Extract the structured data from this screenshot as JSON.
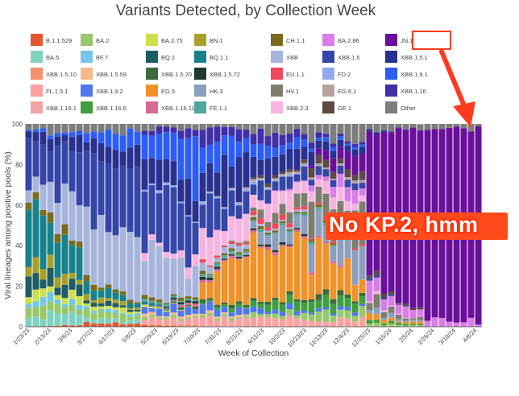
{
  "chart_data": {
    "type": "bar",
    "stacked": true,
    "title": "Variants Detected, by Collection Week",
    "xlabel": "Week of Collection",
    "ylabel": "Viral lineages among positive pools (%)",
    "ylim": [
      0,
      100
    ],
    "yticks": [
      0,
      20,
      40,
      60,
      80,
      100
    ],
    "xtick_labels": [
      "1/23/23",
      "2/13/23",
      "3/6/23",
      "3/27/23",
      "4/17/23",
      "5/8/23",
      "5/29/23",
      "6/19/23",
      "7/10/23",
      "7/31/23",
      "8/21/23",
      "9/11/23",
      "10/2/23",
      "10/23/23",
      "11/13/23",
      "12/4/23",
      "12/25/23",
      "1/15/24",
      "2/5/24",
      "2/26/24",
      "3/18/24",
      "4/8/24"
    ],
    "legend_placement": "top",
    "week_count": 63,
    "series": [
      {
        "name": "B.1.1.529",
        "color": "#e4572e",
        "phases": [
          [
            0,
            1
          ],
          [
            2,
            1
          ],
          [
            1,
            0
          ],
          [
            0,
            0
          ],
          [
            0,
            0
          ],
          [
            0,
            0
          ],
          [
            0,
            0
          ],
          [
            0,
            0
          ]
        ]
      },
      {
        "name": "BA.5",
        "color": "#7fd1c1",
        "phases": [
          [
            4,
            6
          ],
          [
            2,
            1
          ],
          [
            0,
            0
          ],
          [
            0,
            0
          ],
          [
            0,
            0
          ],
          [
            0,
            0
          ],
          [
            0,
            0
          ],
          [
            0,
            0
          ]
        ]
      },
      {
        "name": "XBB.1.5.10",
        "color": "#f58f6c",
        "phases": [
          [
            0,
            0
          ],
          [
            0,
            0
          ],
          [
            0,
            1
          ],
          [
            0,
            0
          ],
          [
            0,
            0
          ],
          [
            0,
            0
          ],
          [
            0,
            0
          ],
          [
            0,
            0
          ]
        ]
      },
      {
        "name": "FL.1.5.1",
        "color": "#ff9f9f",
        "phases": [
          [
            0,
            0
          ],
          [
            0,
            0
          ],
          [
            1,
            2
          ],
          [
            3,
            3
          ],
          [
            3,
            3
          ],
          [
            2,
            2
          ],
          [
            0,
            0
          ],
          [
            0,
            0
          ]
        ]
      },
      {
        "name": "XBB.1.16.1",
        "color": "#f4a3a3",
        "phases": [
          [
            0,
            0
          ],
          [
            0,
            0
          ],
          [
            1,
            1
          ],
          [
            2,
            2
          ],
          [
            2,
            2
          ],
          [
            1,
            1
          ],
          [
            0,
            0
          ],
          [
            0,
            0
          ]
        ]
      },
      {
        "name": "BA.2",
        "color": "#98c86b",
        "phases": [
          [
            5,
            3
          ],
          [
            3,
            2
          ],
          [
            1,
            1
          ],
          [
            1,
            1
          ],
          [
            2,
            3
          ],
          [
            4,
            3
          ],
          [
            1,
            1
          ],
          [
            0,
            0
          ]
        ]
      },
      {
        "name": "BF.7",
        "color": "#74c7e8",
        "phases": [
          [
            3,
            2
          ],
          [
            1,
            1
          ],
          [
            0,
            0
          ],
          [
            0,
            0
          ],
          [
            0,
            0
          ],
          [
            0,
            0
          ],
          [
            0,
            0
          ],
          [
            0,
            0
          ]
        ]
      },
      {
        "name": "XBB.1.5.59",
        "color": "#f7b98b",
        "phases": [
          [
            0,
            0
          ],
          [
            0,
            0
          ],
          [
            1,
            1
          ],
          [
            1,
            1
          ],
          [
            0,
            0
          ],
          [
            0,
            0
          ],
          [
            0,
            0
          ],
          [
            0,
            0
          ]
        ]
      },
      {
        "name": "XBB.1.9.2",
        "color": "#5077ee",
        "phases": [
          [
            0,
            0
          ],
          [
            0,
            0
          ],
          [
            2,
            4
          ],
          [
            3,
            3
          ],
          [
            2,
            2
          ],
          [
            1,
            1
          ],
          [
            0,
            0
          ],
          [
            0,
            0
          ]
        ]
      },
      {
        "name": "XBB.1.16.6",
        "color": "#3f9e3f",
        "phases": [
          [
            0,
            0
          ],
          [
            0,
            0
          ],
          [
            0,
            0
          ],
          [
            1,
            2
          ],
          [
            3,
            4
          ],
          [
            4,
            3
          ],
          [
            1,
            1
          ],
          [
            0,
            0
          ]
        ]
      },
      {
        "name": "BA.2.75",
        "color": "#cde04a",
        "phases": [
          [
            4,
            3
          ],
          [
            2,
            1
          ],
          [
            1,
            0
          ],
          [
            0,
            0
          ],
          [
            0,
            0
          ],
          [
            0,
            0
          ],
          [
            0,
            0
          ],
          [
            0,
            0
          ]
        ]
      },
      {
        "name": "BQ.1",
        "color": "#1f5c63",
        "phases": [
          [
            8,
            4
          ],
          [
            2,
            1
          ],
          [
            0,
            0
          ],
          [
            0,
            0
          ],
          [
            0,
            0
          ],
          [
            0,
            0
          ],
          [
            0,
            0
          ],
          [
            0,
            0
          ]
        ]
      },
      {
        "name": "XBB.1.5.70",
        "color": "#3d6b3d",
        "phases": [
          [
            0,
            0
          ],
          [
            0,
            0
          ],
          [
            0,
            1
          ],
          [
            1,
            2
          ],
          [
            2,
            2
          ],
          [
            2,
            1
          ],
          [
            0,
            0
          ],
          [
            0,
            0
          ]
        ]
      },
      {
        "name": "EG.5",
        "color": "#f0922a",
        "phases": [
          [
            0,
            0
          ],
          [
            0,
            0
          ],
          [
            0,
            0
          ],
          [
            6,
            28
          ],
          [
            38,
            30
          ],
          [
            20,
            8
          ],
          [
            2,
            1
          ],
          [
            0,
            0
          ]
        ]
      },
      {
        "name": "XBB.1.16.11",
        "color": "#d86a95",
        "phases": [
          [
            0,
            0
          ],
          [
            0,
            0
          ],
          [
            0,
            1
          ],
          [
            1,
            1
          ],
          [
            1,
            1
          ],
          [
            1,
            0
          ],
          [
            0,
            0
          ],
          [
            0,
            0
          ]
        ]
      },
      {
        "name": "BN.1",
        "color": "#a8a029",
        "phases": [
          [
            6,
            3
          ],
          [
            2,
            1
          ],
          [
            0,
            0
          ],
          [
            0,
            0
          ],
          [
            0,
            0
          ],
          [
            0,
            0
          ],
          [
            0,
            0
          ],
          [
            0,
            0
          ]
        ]
      },
      {
        "name": "BQ.1.1",
        "color": "#17828c",
        "phases": [
          [
            24,
            12
          ],
          [
            6,
            2
          ],
          [
            1,
            0
          ],
          [
            0,
            0
          ],
          [
            0,
            0
          ],
          [
            0,
            0
          ],
          [
            0,
            0
          ],
          [
            0,
            0
          ]
        ]
      },
      {
        "name": "XBB.1.5.72",
        "color": "#1f3b2f",
        "phases": [
          [
            0,
            0
          ],
          [
            0,
            0
          ],
          [
            0,
            1
          ],
          [
            1,
            1
          ],
          [
            1,
            1
          ],
          [
            0,
            0
          ],
          [
            0,
            0
          ],
          [
            0,
            0
          ]
        ]
      },
      {
        "name": "HK.3",
        "color": "#8aa0be",
        "phases": [
          [
            0,
            0
          ],
          [
            0,
            0
          ],
          [
            0,
            0
          ],
          [
            0,
            1
          ],
          [
            4,
            8
          ],
          [
            10,
            10
          ],
          [
            2,
            1
          ],
          [
            0,
            0
          ]
        ]
      },
      {
        "name": "FE.1.1",
        "color": "#4ea89b",
        "phases": [
          [
            0,
            0
          ],
          [
            0,
            0
          ],
          [
            1,
            1
          ],
          [
            1,
            1
          ],
          [
            1,
            1
          ],
          [
            1,
            0
          ],
          [
            0,
            0
          ],
          [
            0,
            0
          ]
        ]
      },
      {
        "name": "CH.1.1",
        "color": "#7a6b1d",
        "phases": [
          [
            5,
            3
          ],
          [
            2,
            1
          ],
          [
            1,
            1
          ],
          [
            1,
            1
          ],
          [
            1,
            1
          ],
          [
            1,
            0
          ],
          [
            0,
            0
          ],
          [
            0,
            0
          ]
        ]
      },
      {
        "name": "XBB",
        "color": "#a7b5dd",
        "phases": [
          [
            10,
            22
          ],
          [
            34,
            42
          ],
          [
            24,
            10
          ],
          [
            4,
            2
          ],
          [
            1,
            1
          ],
          [
            0,
            0
          ],
          [
            0,
            0
          ],
          [
            0,
            0
          ]
        ]
      },
      {
        "name": "EU.1.1",
        "color": "#f0475a",
        "phases": [
          [
            0,
            0
          ],
          [
            0,
            0
          ],
          [
            0,
            0
          ],
          [
            1,
            1
          ],
          [
            2,
            2
          ],
          [
            1,
            1
          ],
          [
            0,
            0
          ],
          [
            0,
            0
          ]
        ]
      },
      {
        "name": "HV.1",
        "color": "#7e7e6e",
        "phases": [
          [
            0,
            0
          ],
          [
            0,
            0
          ],
          [
            0,
            0
          ],
          [
            0,
            1
          ],
          [
            3,
            8
          ],
          [
            12,
            14
          ],
          [
            4,
            1
          ],
          [
            0,
            0
          ]
        ]
      },
      {
        "name": "XBB.2.3",
        "color": "#f7b4e0",
        "phases": [
          [
            0,
            0
          ],
          [
            0,
            0
          ],
          [
            2,
            4
          ],
          [
            10,
            12
          ],
          [
            8,
            7
          ],
          [
            5,
            3
          ],
          [
            1,
            0
          ],
          [
            0,
            0
          ]
        ]
      },
      {
        "name": "BA.2.86",
        "color": "#d87ee8",
        "phases": [
          [
            0,
            0
          ],
          [
            0,
            0
          ],
          [
            0,
            0
          ],
          [
            0,
            0
          ],
          [
            0,
            1
          ],
          [
            2,
            5
          ],
          [
            8,
            6
          ],
          [
            4,
            2
          ]
        ]
      },
      {
        "name": "XBB.1.5",
        "color": "#3545a8",
        "phases": [
          [
            18,
            22
          ],
          [
            28,
            26
          ],
          [
            30,
            24
          ],
          [
            18,
            12
          ],
          [
            8,
            5
          ],
          [
            3,
            2
          ],
          [
            1,
            0
          ],
          [
            0,
            0
          ]
        ]
      },
      {
        "name": "FD.2",
        "color": "#93a9ee",
        "phases": [
          [
            0,
            0
          ],
          [
            0,
            0
          ],
          [
            1,
            1
          ],
          [
            1,
            1
          ],
          [
            1,
            1
          ],
          [
            0,
            0
          ],
          [
            0,
            0
          ],
          [
            0,
            0
          ]
        ]
      },
      {
        "name": "EG.6.1",
        "color": "#b7a2a2",
        "phases": [
          [
            0,
            0
          ],
          [
            0,
            0
          ],
          [
            0,
            0
          ],
          [
            0,
            1
          ],
          [
            1,
            1
          ],
          [
            1,
            1
          ],
          [
            0,
            0
          ],
          [
            0,
            0
          ]
        ]
      },
      {
        "name": "GE.1",
        "color": "#5b4a45",
        "phases": [
          [
            0,
            0
          ],
          [
            0,
            0
          ],
          [
            0,
            0
          ],
          [
            0,
            0
          ],
          [
            1,
            2
          ],
          [
            3,
            3
          ],
          [
            1,
            1
          ],
          [
            0,
            0
          ]
        ]
      },
      {
        "name": "JN.1",
        "color": "#6a0f9b",
        "phases": [
          [
            0,
            0
          ],
          [
            0,
            0
          ],
          [
            0,
            0
          ],
          [
            0,
            0
          ],
          [
            0,
            0
          ],
          [
            1,
            8
          ],
          [
            70,
            90
          ],
          [
            94,
            96
          ]
        ]
      },
      {
        "name": "XBB.1.5.1",
        "color": "#29318f",
        "phases": [
          [
            4,
            6
          ],
          [
            6,
            8
          ],
          [
            8,
            14
          ],
          [
            22,
            18
          ],
          [
            12,
            9
          ],
          [
            5,
            3
          ],
          [
            1,
            0
          ],
          [
            0,
            0
          ]
        ]
      },
      {
        "name": "XBB.1.9.1",
        "color": "#2c5ef5",
        "phases": [
          [
            1,
            2
          ],
          [
            4,
            8
          ],
          [
            14,
            22
          ],
          [
            16,
            10
          ],
          [
            6,
            4
          ],
          [
            2,
            1
          ],
          [
            0,
            0
          ],
          [
            0,
            0
          ]
        ]
      },
      {
        "name": "XBB.1.16",
        "color": "#3f2fa8",
        "phases": [
          [
            0,
            0
          ],
          [
            0,
            0
          ],
          [
            2,
            4
          ],
          [
            6,
            8
          ],
          [
            6,
            4
          ],
          [
            2,
            1
          ],
          [
            0,
            0
          ],
          [
            0,
            0
          ]
        ]
      },
      {
        "name": "Other",
        "color": "#7d7d7d",
        "phases": [
          [
            3,
            4
          ],
          [
            4,
            3
          ],
          [
            2,
            2
          ],
          [
            2,
            3
          ],
          [
            4,
            5
          ],
          [
            6,
            6
          ],
          [
            3,
            2
          ],
          [
            2,
            2
          ]
        ]
      }
    ]
  },
  "annotation": {
    "text": "No KP.2, hmm",
    "arrow_color": "#ff3b1f"
  }
}
